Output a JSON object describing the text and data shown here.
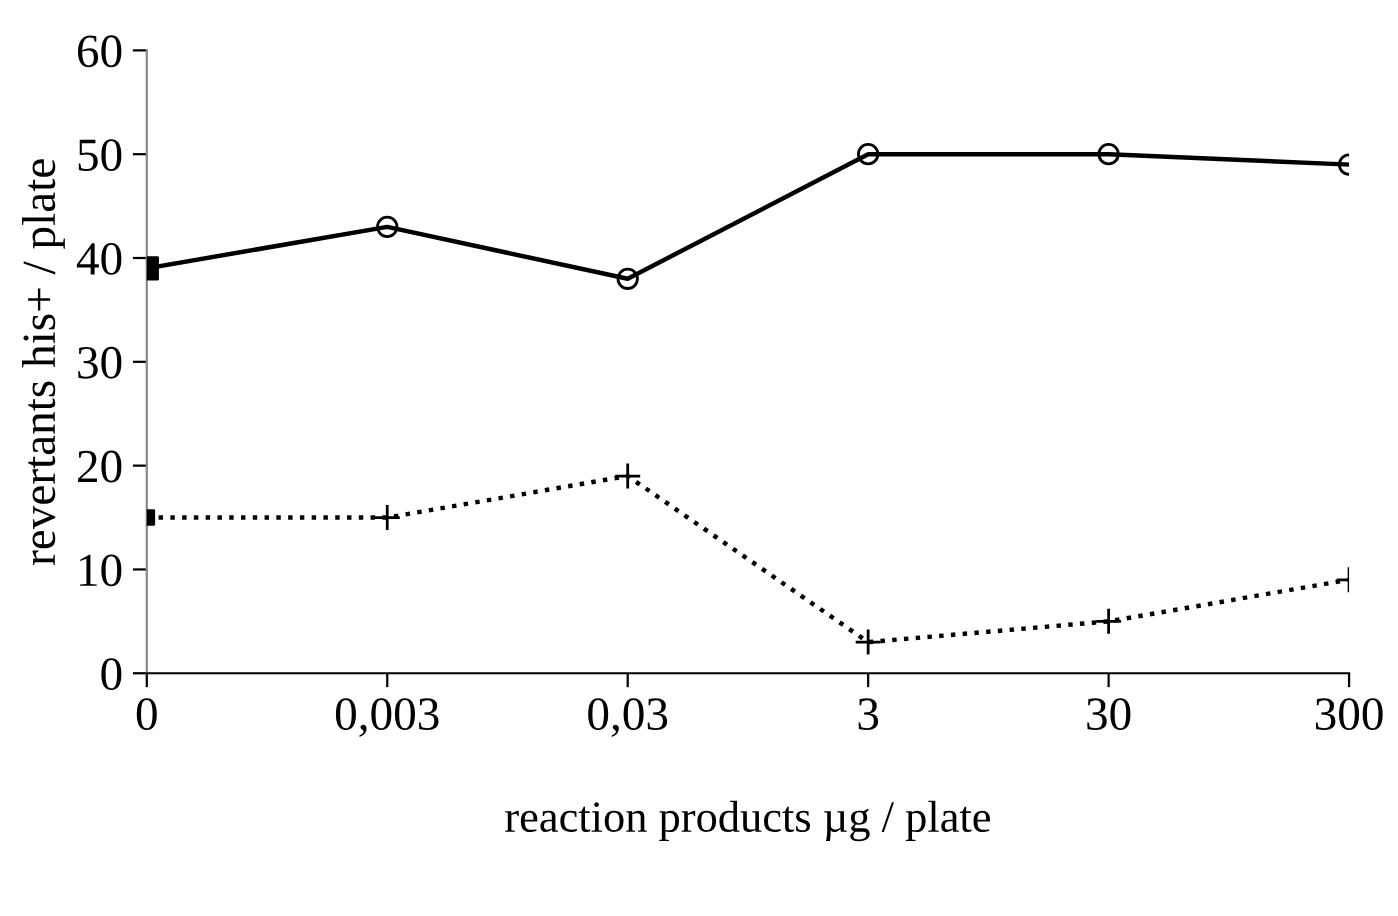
{
  "chart_data": {
    "type": "line",
    "xlabel": "reaction products µg / plate",
    "ylabel": "revertants his+ / plate",
    "categories": [
      "0",
      "0,003",
      "0,03",
      "3",
      "30",
      "300"
    ],
    "series": [
      {
        "color": "#000000",
        "values": [
          39,
          43,
          38,
          50,
          50,
          49
        ],
        "marker": "circle",
        "line_style": "solid"
      },
      {
        "color": "#000000",
        "values": [
          15,
          15,
          19,
          3,
          5,
          9
        ],
        "marker": "cross",
        "line_style": "dotted"
      },
      {
        "type": "scatter",
        "color": "#000000",
        "values": [
          39,
          null,
          null,
          null,
          null,
          null
        ],
        "marker": "square"
      },
      {
        "type": "scatter",
        "color": "#000000",
        "values": [
          15,
          null,
          null,
          null,
          null,
          null
        ],
        "marker": "square"
      }
    ],
    "ylim": [
      0,
      60
    ],
    "yticks": [
      0,
      10,
      20,
      30,
      40,
      50,
      60
    ],
    "grid": false,
    "legend": false
  }
}
